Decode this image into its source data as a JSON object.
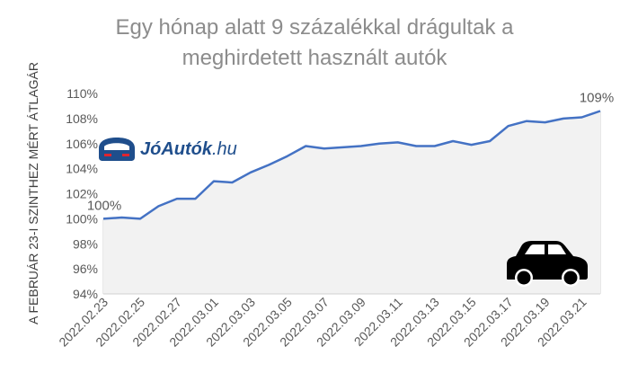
{
  "chart_data": {
    "type": "area",
    "title_lines": [
      "Egy hónap alatt 9 százalékkal drágultak a",
      "meghirdetett használt autók"
    ],
    "ylabel": "A FEBRUÁR 23-I SZINTHEZ MÉRT ÁTLAGÁR",
    "xlabel": "",
    "ylim": [
      94,
      110
    ],
    "yticks": [
      94,
      96,
      98,
      100,
      102,
      104,
      106,
      108,
      110
    ],
    "ytick_format": "{v}%",
    "x": [
      "2022.02.23",
      "2022.02.24",
      "2022.02.25",
      "2022.02.26",
      "2022.02.27",
      "2022.02.28",
      "2022.03.01",
      "2022.03.02",
      "2022.03.03",
      "2022.03.04",
      "2022.03.05",
      "2022.03.06",
      "2022.03.07",
      "2022.03.08",
      "2022.03.09",
      "2022.03.10",
      "2022.03.11",
      "2022.03.12",
      "2022.03.13",
      "2022.03.14",
      "2022.03.15",
      "2022.03.16",
      "2022.03.17",
      "2022.03.18",
      "2022.03.19",
      "2022.03.20",
      "2022.03.21",
      "2022.03.22"
    ],
    "xtick_labels_shown": [
      "2022.02.23",
      "2022.02.25",
      "2022.02.27",
      "2022.03.01",
      "2022.03.03",
      "2022.03.05",
      "2022.03.07",
      "2022.03.09",
      "2022.03.11",
      "2022.03.13",
      "2022.03.15",
      "2022.03.17",
      "2022.03.19",
      "2022.03.21"
    ],
    "series": [
      {
        "values": [
          100.0,
          100.1,
          100.0,
          101.0,
          101.6,
          101.6,
          103.0,
          102.9,
          103.7,
          104.3,
          105.0,
          105.8,
          105.6,
          105.7,
          105.8,
          106.0,
          106.1,
          105.8,
          105.8,
          106.2,
          105.9,
          106.2,
          107.4,
          107.8,
          107.7,
          108.0,
          108.1,
          108.6
        ],
        "line_color": "#4472c4",
        "fill_color": "#f2f2f2"
      }
    ],
    "annotations": [
      {
        "text": "100%",
        "x": "2022.02.23"
      },
      {
        "text": "109%",
        "x": "2022.03.22"
      }
    ],
    "grid": true,
    "grid_axis": "x"
  },
  "logo": {
    "brand_main": "JóAutók",
    "brand_sub": ".hu",
    "logo_colors": {
      "primary": "#1f4e8c",
      "accent": "#e0242f"
    }
  },
  "car_icon": "car-icon"
}
